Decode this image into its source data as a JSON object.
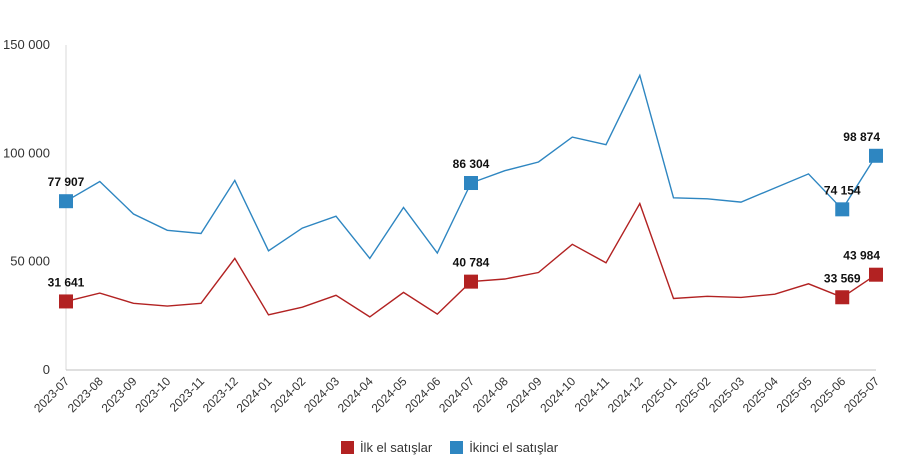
{
  "chart_data": {
    "type": "line",
    "categories": [
      "2023-07",
      "2023-08",
      "2023-09",
      "2023-10",
      "2023-11",
      "2023-12",
      "2024-01",
      "2024-02",
      "2024-03",
      "2024-04",
      "2024-05",
      "2024-06",
      "2024-07",
      "2024-08",
      "2024-09",
      "2024-10",
      "2024-11",
      "2024-12",
      "2025-01",
      "2025-02",
      "2025-03",
      "2025-04",
      "2025-05",
      "2025-06",
      "2025-07"
    ],
    "ylim": [
      0,
      150000
    ],
    "yticks": [
      0,
      50000,
      100000,
      150000
    ],
    "ytick_labels": [
      "0",
      "50 000",
      "100 000",
      "150 000"
    ],
    "grid": false,
    "legend_position": "bottom",
    "series": [
      {
        "name": "İlk el satışlar",
        "color": "#B22222",
        "values": [
          31641,
          35500,
          30800,
          29500,
          30800,
          51500,
          25500,
          29000,
          34500,
          24500,
          35800,
          25800,
          40784,
          42000,
          45000,
          58000,
          49500,
          76800,
          33000,
          34000,
          33500,
          35000,
          39800,
          33569,
          43984
        ],
        "labeled": [
          {
            "index": 0,
            "label": "31 641"
          },
          {
            "index": 12,
            "label": "40 784"
          },
          {
            "index": 23,
            "label": "33 569"
          },
          {
            "index": 24,
            "label": "43 984"
          }
        ]
      },
      {
        "name": "İkinci el satışlar",
        "color": "#2E86C1",
        "values": [
          77907,
          87000,
          72000,
          64500,
          63000,
          87500,
          55000,
          65500,
          71000,
          51500,
          75000,
          54000,
          86304,
          92000,
          96000,
          107500,
          104000,
          136000,
          79500,
          79000,
          77500,
          84000,
          90500,
          74154,
          98874
        ],
        "labeled": [
          {
            "index": 0,
            "label": "77 907"
          },
          {
            "index": 12,
            "label": "86 304"
          },
          {
            "index": 23,
            "label": "74 154"
          },
          {
            "index": 24,
            "label": "98 874"
          }
        ]
      }
    ]
  }
}
